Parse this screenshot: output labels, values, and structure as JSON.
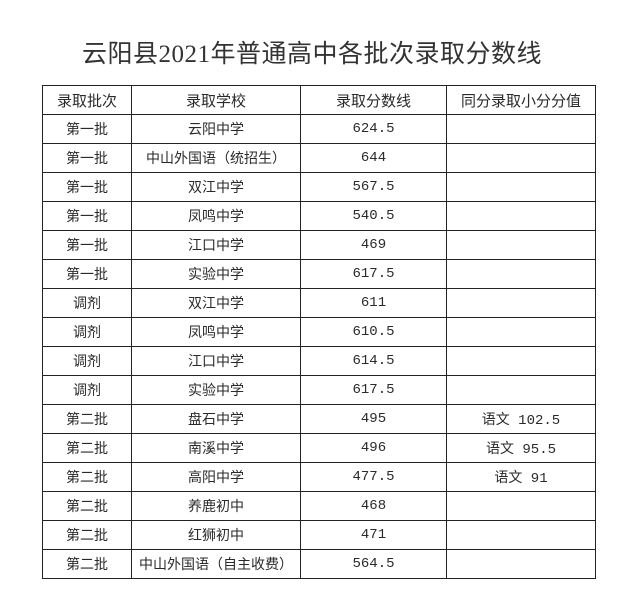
{
  "title": "云阳县2021年普通高中各批次录取分数线",
  "table": {
    "headers": [
      "录取批次",
      "录取学校",
      "录取分数线",
      "同分录取小分分值"
    ],
    "rows": [
      [
        "第一批",
        "云阳中学",
        "624.5",
        ""
      ],
      [
        "第一批",
        "中山外国语（统招生）",
        "644",
        ""
      ],
      [
        "第一批",
        "双江中学",
        "567.5",
        ""
      ],
      [
        "第一批",
        "凤鸣中学",
        "540.5",
        ""
      ],
      [
        "第一批",
        "江口中学",
        "469",
        ""
      ],
      [
        "第一批",
        "实验中学",
        "617.5",
        ""
      ],
      [
        "调剂",
        "双江中学",
        "611",
        ""
      ],
      [
        "调剂",
        "凤鸣中学",
        "610.5",
        ""
      ],
      [
        "调剂",
        "江口中学",
        "614.5",
        ""
      ],
      [
        "调剂",
        "实验中学",
        "617.5",
        ""
      ],
      [
        "第二批",
        "盘石中学",
        "495",
        "语文 102.5"
      ],
      [
        "第二批",
        "南溪中学",
        "496",
        "语文 95.5"
      ],
      [
        "第二批",
        "高阳中学",
        "477.5",
        "语文 91"
      ],
      [
        "第二批",
        "养鹿初中",
        "468",
        ""
      ],
      [
        "第二批",
        "红狮初中",
        "471",
        ""
      ],
      [
        "第二批",
        "中山外国语（自主收费）",
        "564.5",
        ""
      ]
    ]
  }
}
